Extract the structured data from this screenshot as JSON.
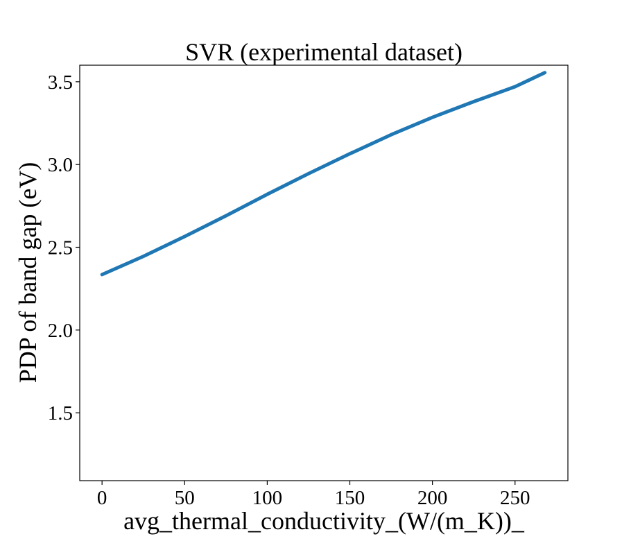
{
  "chart_data": {
    "type": "line",
    "title": "SVR (experimental dataset)",
    "xlabel": "avg_thermal_conductivity_(W/(m_K))_",
    "ylabel": "PDP of band gap (eV)",
    "xlim": [
      -13.5,
      282
    ],
    "ylim": [
      1.09,
      3.6
    ],
    "x_ticks": [
      0,
      50,
      100,
      150,
      200,
      250
    ],
    "x_tick_labels": [
      "0",
      "50",
      "100",
      "150",
      "200",
      "250"
    ],
    "y_ticks": [
      1.5,
      2.0,
      2.5,
      3.0,
      3.5
    ],
    "y_tick_labels": [
      "1.5",
      "2.0",
      "2.5",
      "3.0",
      "3.5"
    ],
    "grid": false,
    "series": [
      {
        "color": "#1f77b4",
        "x": [
          0,
          25,
          50,
          75,
          100,
          125,
          150,
          175,
          200,
          225,
          250,
          268
        ],
        "y": [
          2.335,
          2.445,
          2.565,
          2.69,
          2.82,
          2.945,
          3.065,
          3.18,
          3.285,
          3.38,
          3.47,
          3.555
        ]
      }
    ]
  }
}
